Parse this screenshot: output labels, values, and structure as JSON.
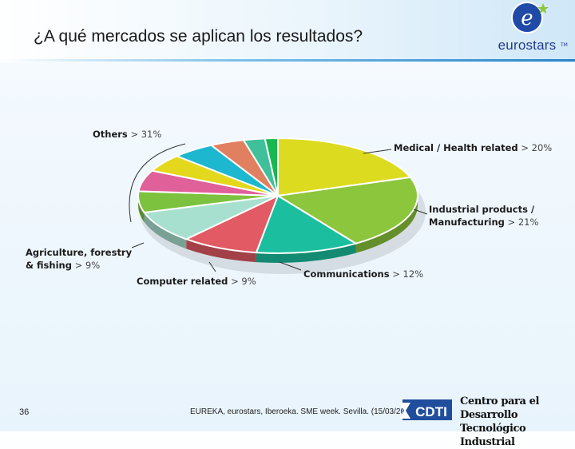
{
  "slide": {
    "title": "¿A qué mercados se aplican los resultados?",
    "page_number": "36",
    "footer": "EUREKA, eurostars, Iberoeka. SME week. Sevilla. (15/03/20",
    "logo_text": "eurostars",
    "logo_tm": "TM",
    "cdti_text": "CDTI",
    "cdti_name_line1": "Centro para el Desarrollo",
    "cdti_name_line2": "Tecnológico Industrial"
  },
  "colors": {
    "title_line": "#2a86c6",
    "logo_blue": "#243a8c",
    "cdti_blue": "#1f4e9c"
  },
  "chart_data": {
    "type": "pie",
    "title": "",
    "slices": [
      {
        "label": "Medical / Health related",
        "value": 20,
        "value_label": "20%",
        "color": "#dddb20"
      },
      {
        "label_line1": "Industrial products /",
        "label_line2": "Manufacturing",
        "label": "Industrial products / Manufacturing",
        "value": 21,
        "value_label": "21%",
        "color": "#8cc63c"
      },
      {
        "label": "Communications",
        "value": 12,
        "value_label": "12%",
        "color": "#1bbf9f"
      },
      {
        "label": "Computer related",
        "value": 9,
        "value_label": "9%",
        "color": "#e25a64"
      },
      {
        "label": "",
        "value": 9,
        "color": "#a8e0cf"
      },
      {
        "label": "",
        "value": 6,
        "color": "#7cc23e"
      },
      {
        "label": "",
        "value": 6,
        "color": "#e0609a"
      },
      {
        "label": "",
        "value": 5,
        "color": "#e3d81c"
      },
      {
        "label": "",
        "value": 5,
        "color": "#1db7cf"
      },
      {
        "label": "",
        "value": 4,
        "color": "#e08060"
      },
      {
        "label": "",
        "value": 2.5,
        "color": "#40c09a"
      },
      {
        "label": "",
        "value": 1.5,
        "color": "#18b850"
      }
    ],
    "callouts": {
      "others": {
        "label": "Others",
        "value_label": "31%"
      },
      "agriculture": {
        "label_line1": "Agriculture, forestry",
        "label_line2": "& fishing",
        "value_label": "9%"
      }
    },
    "separator": ">"
  }
}
